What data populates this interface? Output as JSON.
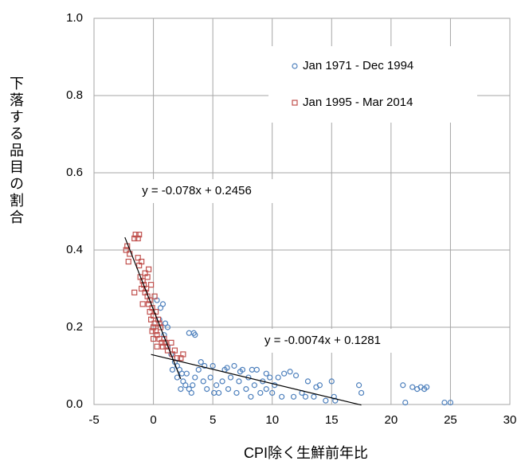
{
  "chart_data": {
    "type": "scatter",
    "x_label": "CPI除く生鮮前年比",
    "y_label": "下落する品目の割合",
    "xlim": [
      -5,
      30
    ],
    "xticks": [
      -5,
      0,
      5,
      10,
      15,
      20,
      25,
      30
    ],
    "ylim": [
      0,
      1
    ],
    "yticks": [
      {
        "value": 0,
        "label": "0.0"
      },
      0.2,
      0.4,
      0.6,
      0.8,
      {
        "value": 1,
        "label": "1.0"
      }
    ],
    "grid": true,
    "legend": "upper right",
    "series": [
      {
        "name": "Jan 1971 - Dec 1994",
        "color": "#4f81bd",
        "marker": "circle",
        "x": [
          0.3,
          0.5,
          0.8,
          1.0,
          0.9,
          1.2,
          1.5,
          1.8,
          2.0,
          2.2,
          2.4,
          2.5,
          2.7,
          3.0,
          3.3,
          3.5,
          3.0,
          3.4,
          3.5,
          4.0,
          4.2,
          4.5,
          4.8,
          5.0,
          5.3,
          5.5,
          5.8,
          6.0,
          6.3,
          6.5,
          6.8,
          7.0,
          7.2,
          7.5,
          7.8,
          8.0,
          8.2,
          8.5,
          8.7,
          9.0,
          9.2,
          9.5,
          9.8,
          10.0,
          10.2,
          11.0,
          11.5,
          12.0,
          12.5,
          13.0,
          13.5,
          13.7,
          14.0,
          15.0,
          15.2,
          17.3,
          17.5,
          21.0,
          21.2,
          21.8,
          22.2,
          22.5,
          22.8,
          23.0,
          24.5,
          25.0,
          2.0,
          1.6,
          2.8,
          3.8,
          4.3,
          6.2,
          7.3,
          8.3,
          9.5,
          10.5,
          12.8,
          14.5,
          15.3,
          11.8,
          10.8,
          5.1,
          3.2,
          2.3,
          1.2,
          0.6
        ],
        "values": [
          0.27,
          0.22,
          0.26,
          0.21,
          0.18,
          0.15,
          0.13,
          0.11,
          0.1,
          0.09,
          0.08,
          0.06,
          0.05,
          0.04,
          0.05,
          0.07,
          0.185,
          0.185,
          0.18,
          0.11,
          0.06,
          0.04,
          0.07,
          0.1,
          0.05,
          0.03,
          0.06,
          0.09,
          0.04,
          0.07,
          0.1,
          0.03,
          0.06,
          0.09,
          0.04,
          0.07,
          0.02,
          0.05,
          0.09,
          0.03,
          0.06,
          0.04,
          0.07,
          0.03,
          0.05,
          0.08,
          0.085,
          0.075,
          0.03,
          0.06,
          0.02,
          0.045,
          0.05,
          0.06,
          0.02,
          0.05,
          0.03,
          0.05,
          0.005,
          0.045,
          0.04,
          0.045,
          0.04,
          0.045,
          0.005,
          0.005,
          0.07,
          0.09,
          0.08,
          0.09,
          0.1,
          0.095,
          0.085,
          0.09,
          0.08,
          0.07,
          0.02,
          0.01,
          0.01,
          0.02,
          0.02,
          0.03,
          0.03,
          0.04,
          0.2,
          0.25
        ]
      },
      {
        "name": "Jan 1995 - Mar 2014",
        "color": "#c0504d",
        "marker": "square",
        "x": [
          -2.3,
          -2.2,
          -2.1,
          -2.0,
          -1.6,
          -1.5,
          -1.3,
          -1.2,
          -1.6,
          -1.3,
          -1.2,
          -1.1,
          -1.0,
          -0.9,
          -1.0,
          -0.8,
          -0.7,
          -0.6,
          -0.5,
          -0.4,
          -0.3,
          -0.3,
          -0.2,
          -0.1,
          0.0,
          0.0,
          0.1,
          0.2,
          0.2,
          0.3,
          0.4,
          0.5,
          0.6,
          0.7,
          0.8,
          0.9,
          1.0,
          1.1,
          1.2,
          1.5,
          1.6,
          1.8,
          2.0,
          2.3,
          2.5,
          -0.9,
          -0.5,
          -0.2,
          0.1,
          0.0,
          -0.1,
          0.3,
          0.5,
          -0.4,
          -0.7
        ],
        "values": [
          0.4,
          0.41,
          0.37,
          0.39,
          0.43,
          0.44,
          0.43,
          0.44,
          0.29,
          0.38,
          0.36,
          0.33,
          0.37,
          0.32,
          0.3,
          0.31,
          0.29,
          0.3,
          0.28,
          0.26,
          0.27,
          0.24,
          0.22,
          0.25,
          0.23,
          0.2,
          0.21,
          0.19,
          0.24,
          0.18,
          0.22,
          0.17,
          0.2,
          0.16,
          0.15,
          0.17,
          0.16,
          0.15,
          0.14,
          0.16,
          0.13,
          0.14,
          0.12,
          0.12,
          0.13,
          0.26,
          0.33,
          0.31,
          0.28,
          0.17,
          0.19,
          0.15,
          0.21,
          0.35,
          0.34
        ]
      }
    ],
    "trendlines": [
      {
        "label": "y = -0.078x + 0.2456",
        "slope": -0.078,
        "intercept": 0.2456,
        "x_range": [
          -2.4,
          2.3
        ]
      },
      {
        "label": "y = -0.0074x + 0.1281",
        "slope": -0.0074,
        "intercept": 0.1281,
        "x_range": [
          -0.2,
          17.5
        ]
      }
    ]
  }
}
